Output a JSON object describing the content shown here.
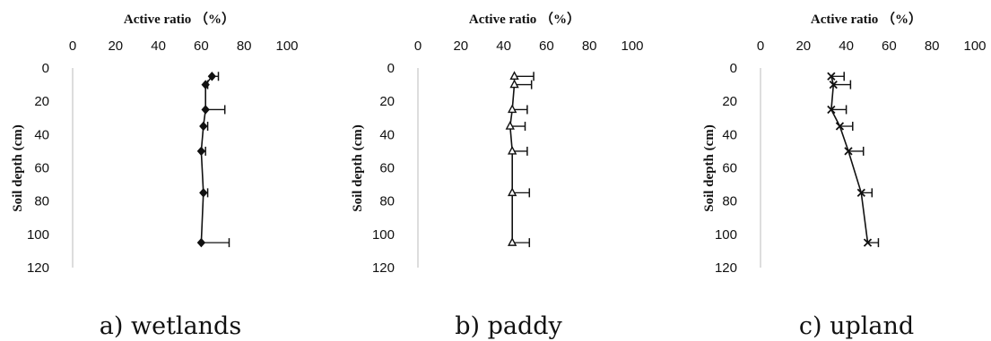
{
  "chart_data": [
    {
      "type": "line",
      "panel": "wetlands",
      "caption": "a) wetlands",
      "xlabel": "Active ratio （%）",
      "ylabel": "Soil depth (cm)",
      "xaxis_position": "top",
      "yaxis_inverted": true,
      "xlim": [
        0,
        100
      ],
      "ylim": [
        0,
        120
      ],
      "xticks": [
        "0",
        "20",
        "40",
        "60",
        "80",
        "100"
      ],
      "yticks": [
        "0",
        "20",
        "40",
        "60",
        "80",
        "100",
        "120"
      ],
      "grid": false,
      "series": [
        {
          "marker": "diamond",
          "points": [
            {
              "depth": 5,
              "value": 65,
              "error": 3
            },
            {
              "depth": 10,
              "value": 62,
              "error": 1
            },
            {
              "depth": 25,
              "value": 62,
              "error": 9
            },
            {
              "depth": 35,
              "value": 61,
              "error": 2
            },
            {
              "depth": 50,
              "value": 60,
              "error": 2
            },
            {
              "depth": 75,
              "value": 61,
              "error": 2
            },
            {
              "depth": 105,
              "value": 60,
              "error": 13
            }
          ]
        }
      ]
    },
    {
      "type": "line",
      "panel": "paddy",
      "caption": "b) paddy",
      "xlabel": "Active ratio （%）",
      "ylabel": "Soil depth (cm)",
      "xaxis_position": "top",
      "yaxis_inverted": true,
      "xlim": [
        0,
        100
      ],
      "ylim": [
        0,
        120
      ],
      "xticks": [
        "0",
        "20",
        "40",
        "60",
        "80",
        "100"
      ],
      "yticks": [
        "0",
        "20",
        "40",
        "60",
        "80",
        "100",
        "120"
      ],
      "grid": false,
      "series": [
        {
          "marker": "triangle",
          "points": [
            {
              "depth": 5,
              "value": 45,
              "error": 9
            },
            {
              "depth": 10,
              "value": 45,
              "error": 8
            },
            {
              "depth": 25,
              "value": 44,
              "error": 7
            },
            {
              "depth": 35,
              "value": 43,
              "error": 7
            },
            {
              "depth": 50,
              "value": 44,
              "error": 7
            },
            {
              "depth": 75,
              "value": 44,
              "error": 8
            },
            {
              "depth": 105,
              "value": 44,
              "error": 8
            }
          ]
        }
      ]
    },
    {
      "type": "line",
      "panel": "upland",
      "caption": "c) upland",
      "xlabel": "Active ratio （%）",
      "ylabel": "Soil depth (cm)",
      "xaxis_position": "top",
      "yaxis_inverted": true,
      "xlim": [
        0,
        100
      ],
      "ylim": [
        0,
        120
      ],
      "xticks": [
        "0",
        "20",
        "40",
        "60",
        "80",
        "100"
      ],
      "yticks": [
        "0",
        "20",
        "40",
        "60",
        "80",
        "100",
        "120"
      ],
      "grid": false,
      "series": [
        {
          "marker": "x",
          "points": [
            {
              "depth": 5,
              "value": 33,
              "error": 6
            },
            {
              "depth": 10,
              "value": 34,
              "error": 8
            },
            {
              "depth": 25,
              "value": 33,
              "error": 7
            },
            {
              "depth": 35,
              "value": 37,
              "error": 6
            },
            {
              "depth": 50,
              "value": 41,
              "error": 7
            },
            {
              "depth": 75,
              "value": 47,
              "error": 5
            },
            {
              "depth": 105,
              "value": 50,
              "error": 5
            }
          ]
        }
      ]
    }
  ]
}
